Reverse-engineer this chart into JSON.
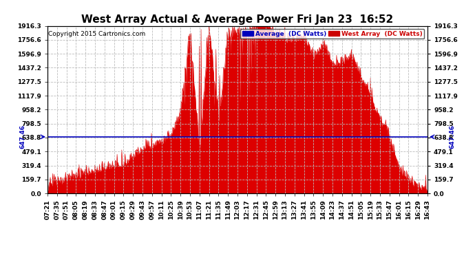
{
  "title": "West Array Actual & Average Power Fri Jan 23  16:52",
  "copyright": "Copyright 2015 Cartronics.com",
  "legend_avg_label": "Average  (DC Watts)",
  "legend_west_label": "West Array  (DC Watts)",
  "legend_avg_color": "#0000bb",
  "legend_west_color": "#cc0000",
  "avg_line_value": 647.46,
  "avg_line_color": "#0000bb",
  "ymax": 1916.3,
  "yticks": [
    0.0,
    159.7,
    319.4,
    479.1,
    638.8,
    798.5,
    958.2,
    1117.9,
    1277.5,
    1437.2,
    1596.9,
    1756.6,
    1916.3
  ],
  "ytick_labels": [
    "0.0",
    "159.7",
    "319.4",
    "479.1",
    "638.8",
    "798.5",
    "958.2",
    "1117.9",
    "1277.5",
    "1437.2",
    "1596.9",
    "1756.6",
    "1916.3"
  ],
  "bar_color": "#dd0000",
  "background_color": "#ffffff",
  "plot_bg_color": "#f0f0f0",
  "grid_color": "#cccccc",
  "title_fontsize": 11,
  "copyright_fontsize": 6.5,
  "tick_fontsize": 6.5,
  "xtick_labels": [
    "07:21",
    "07:35",
    "07:51",
    "08:05",
    "08:19",
    "08:33",
    "08:47",
    "09:01",
    "09:15",
    "09:29",
    "09:43",
    "09:57",
    "10:11",
    "10:25",
    "10:39",
    "10:53",
    "11:07",
    "11:21",
    "11:35",
    "11:49",
    "12:03",
    "12:17",
    "12:31",
    "12:45",
    "12:59",
    "13:13",
    "13:27",
    "13:41",
    "13:55",
    "14:09",
    "14:23",
    "14:37",
    "14:51",
    "15:05",
    "15:19",
    "15:33",
    "15:47",
    "16:01",
    "16:15",
    "16:29",
    "16:43"
  ]
}
